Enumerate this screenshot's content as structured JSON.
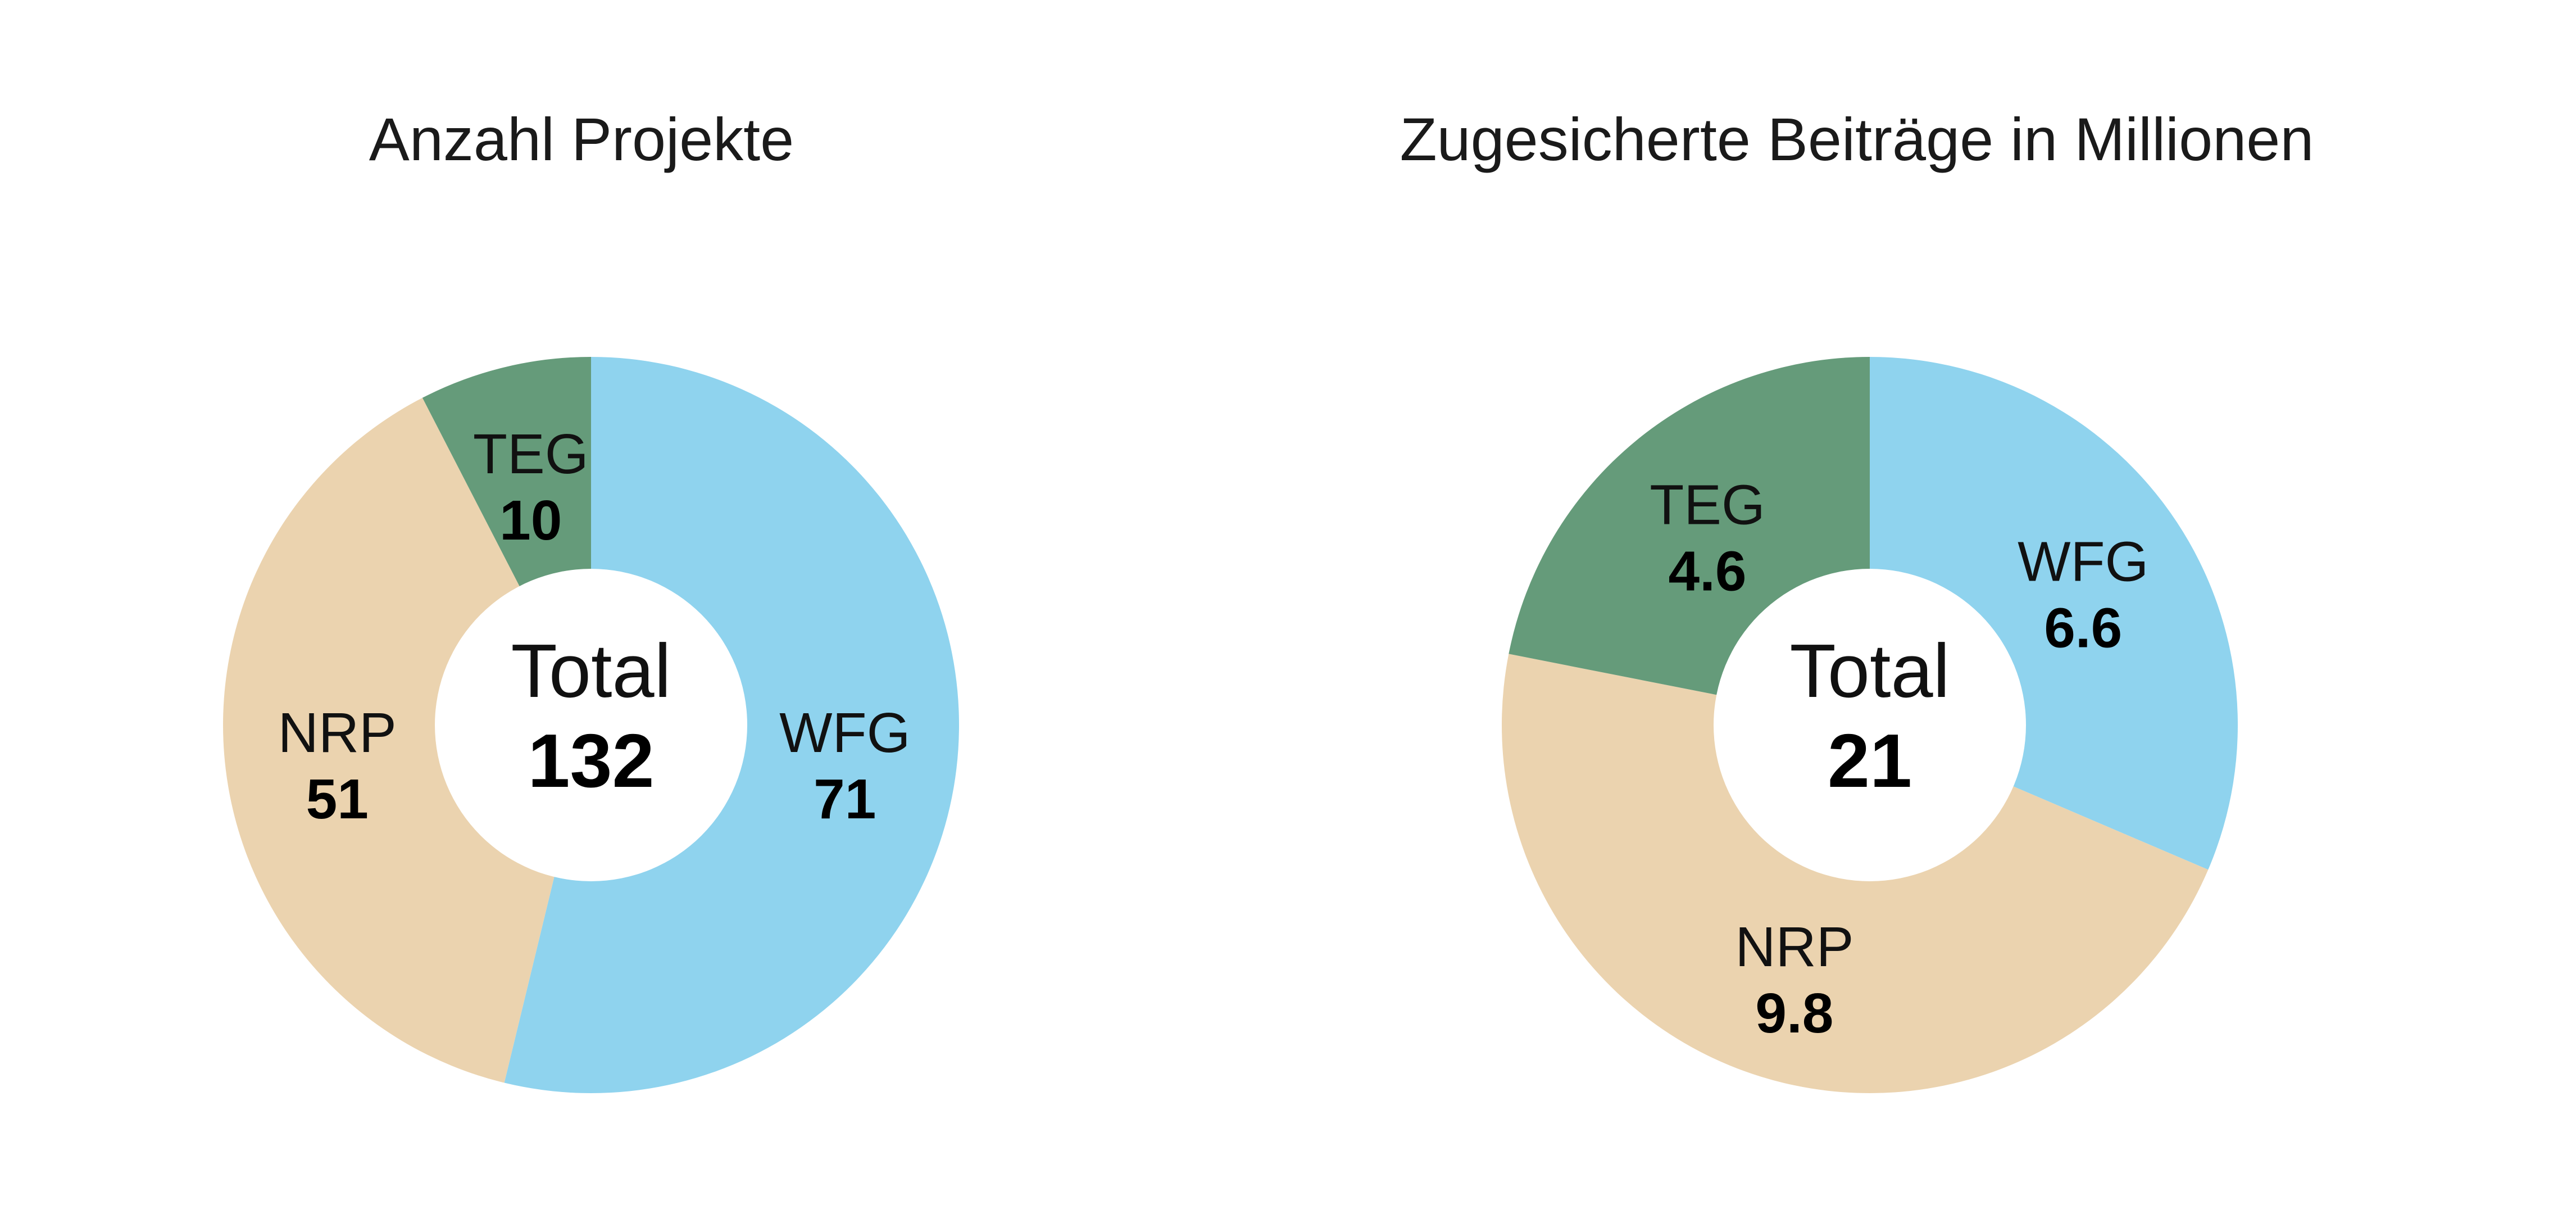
{
  "chart_data": [
    {
      "type": "pie",
      "title": "Anzahl Projekte",
      "center_label": "Total",
      "center_value": "132",
      "categories": [
        "WFG",
        "NRP",
        "TEG"
      ],
      "values": [
        71,
        51,
        10
      ],
      "value_labels": [
        "71",
        "51",
        "10"
      ],
      "colors": [
        "#8fd3ee",
        "#ebd3af",
        "#659b7a"
      ],
      "start_angle_deg": 0,
      "direction": "clockwise",
      "donut": true,
      "legend": "none"
    },
    {
      "type": "pie",
      "title": "Zugesicherte Beiträge in Millionen",
      "center_label": "Total",
      "center_value": "21",
      "categories": [
        "WFG",
        "NRP",
        "TEG"
      ],
      "values": [
        6.6,
        9.8,
        4.6
      ],
      "value_labels": [
        "6.6",
        "9.8",
        "4.6"
      ],
      "colors": [
        "#8fd3ee",
        "#ebd3af",
        "#659b7a"
      ],
      "start_angle_deg": 0,
      "direction": "clockwise",
      "donut": true,
      "legend": "none"
    }
  ]
}
